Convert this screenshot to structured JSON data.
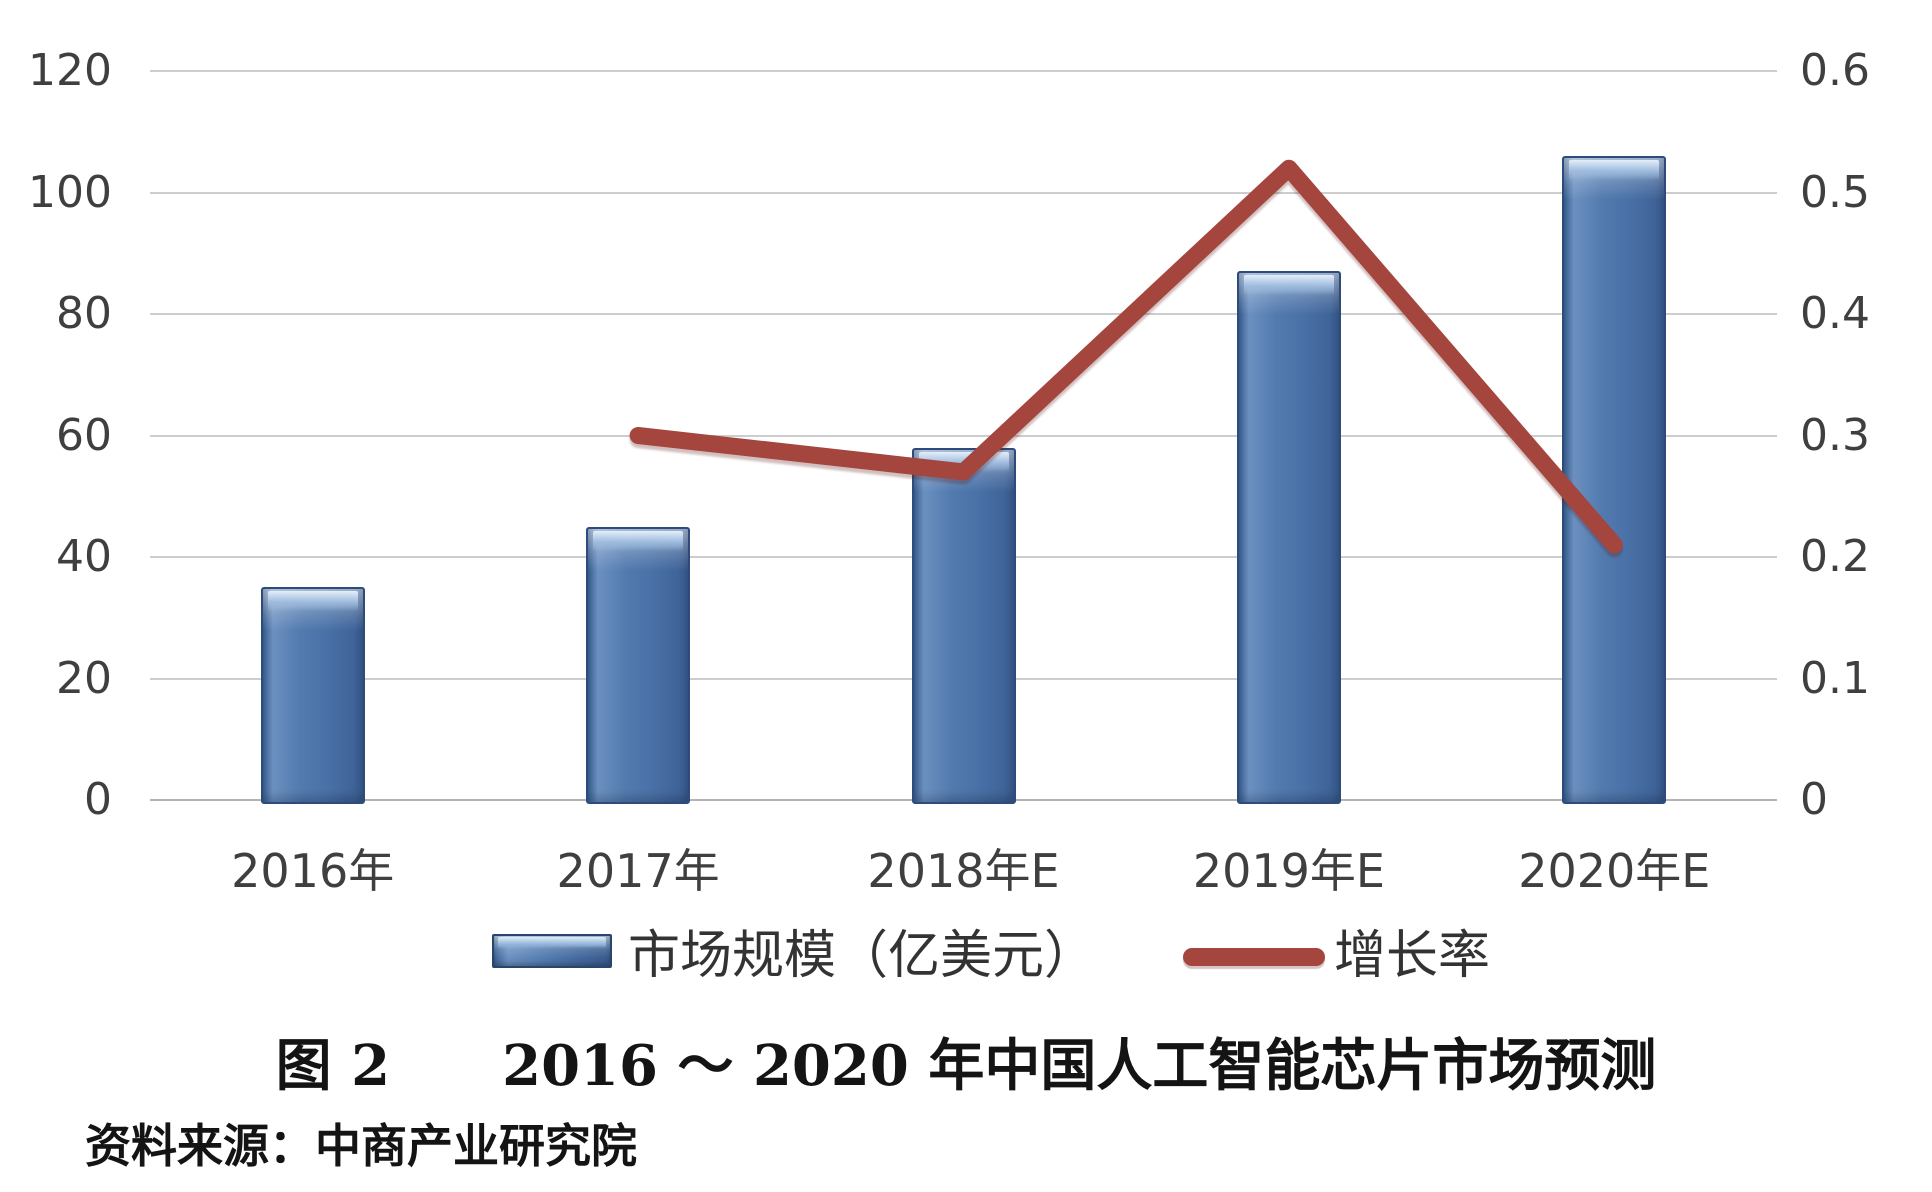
{
  "chart_data": {
    "type": "bar",
    "subtype": "combo-bar-line-dual-axis",
    "categories": [
      "2016年",
      "2017年",
      "2018年E",
      "2019年E",
      "2020年E"
    ],
    "series": [
      {
        "name": "市场规模（亿美元）",
        "type": "bar",
        "axis": "left",
        "values": [
          35,
          45,
          58,
          87,
          106
        ],
        "color": "#4a72a8"
      },
      {
        "name": "增长率",
        "type": "line",
        "axis": "right",
        "values": [
          null,
          0.3,
          0.27,
          0.52,
          0.21
        ],
        "color": "#a4453e"
      }
    ],
    "left_axis": {
      "min": 0,
      "max": 120,
      "step": 20,
      "ticks": [
        "0",
        "20",
        "40",
        "60",
        "80",
        "100",
        "120"
      ]
    },
    "right_axis": {
      "min": 0,
      "max": 0.6,
      "step": 0.1,
      "ticks": [
        "0",
        "0.1",
        "0.2",
        "0.3",
        "0.4",
        "0.5",
        "0.6"
      ]
    },
    "grid": true,
    "legend_position": "bottom",
    "colors": {
      "gridline": "#cdcdcd",
      "axis_text": "#3f3f3f",
      "background": "#ffffff"
    }
  },
  "legend": {
    "bar_label": "市场规模（亿美元）",
    "line_label": "增长率"
  },
  "caption": {
    "text": "图 2　　2016 ～ 2020 年中国人工智能芯片市场预测"
  },
  "source": {
    "text": "资料来源：中商产业研究院"
  }
}
